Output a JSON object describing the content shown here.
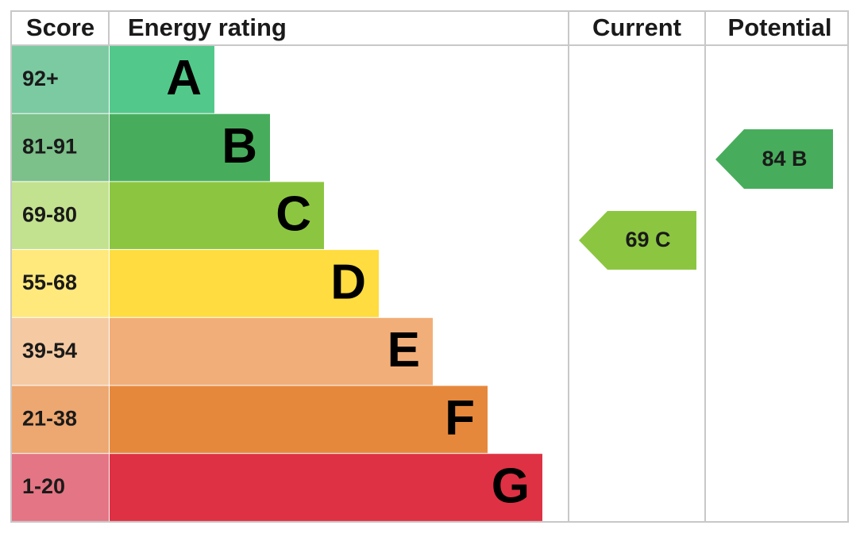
{
  "header": {
    "score": "Score",
    "rating": "Energy rating",
    "current": "Current",
    "potential": "Potential"
  },
  "bands": [
    {
      "score": "92+",
      "letter": "A",
      "color": "#52c98a",
      "light": "#7ccaa2"
    },
    {
      "score": "81-91",
      "letter": "B",
      "color": "#47ad5c",
      "light": "#7cc08a"
    },
    {
      "score": "69-80",
      "letter": "C",
      "color": "#8cc641",
      "light": "#c3e28f"
    },
    {
      "score": "55-68",
      "letter": "D",
      "color": "#ffdc3f",
      "light": "#ffe97c"
    },
    {
      "score": "39-54",
      "letter": "E",
      "color": "#f2ae78",
      "light": "#f5caa2"
    },
    {
      "score": "21-38",
      "letter": "F",
      "color": "#e6883c",
      "light": "#eda770"
    },
    {
      "score": "1-20",
      "letter": "G",
      "color": "#df3144",
      "light": "#e47584"
    }
  ],
  "current": {
    "label": "69 C",
    "color": "#8cc641"
  },
  "potential": {
    "label": "84 B",
    "color": "#47ad5c"
  }
}
